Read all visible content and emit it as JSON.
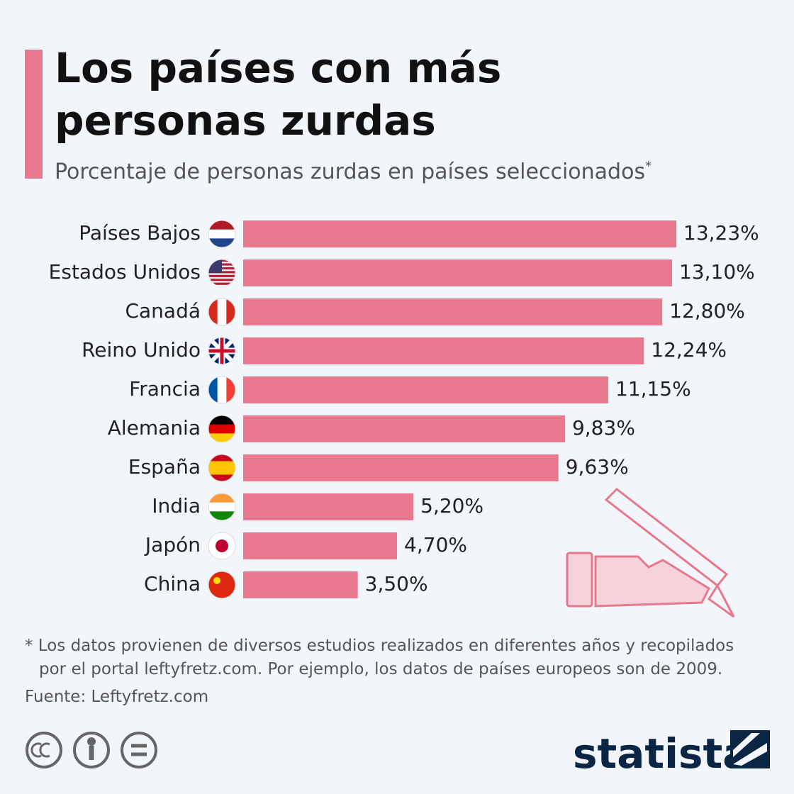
{
  "chart_data": {
    "type": "bar",
    "title": [
      "Los países con más",
      "personas zurdas"
    ],
    "subtitle": "Porcentaje de personas zurdas en países seleccionados",
    "subtitle_marker": "*",
    "categories": [
      "Países Bajos",
      "Estados Unidos",
      "Canadá",
      "Reino Unido",
      "Francia",
      "Alemania",
      "España",
      "India",
      "Japón",
      "China"
    ],
    "values": [
      13.23,
      13.1,
      12.8,
      12.24,
      11.15,
      9.83,
      9.63,
      5.2,
      4.7,
      3.5
    ],
    "value_labels": [
      "13,23%",
      "13,10%",
      "12,80%",
      "12,24%",
      "11,15%",
      "9,83%",
      "9,63%",
      "5,20%",
      "4,70%",
      "3,50%"
    ],
    "color": "#e8788e",
    "note": [
      "* Los datos provienen de diversos estudios realizados en diferentes años y recopilados",
      "por el portal leftyfretz.com. Por ejemplo, los datos de países europeos son de 2009."
    ],
    "source": "Fuente: Leftyfretz.com",
    "brand": "statista"
  }
}
